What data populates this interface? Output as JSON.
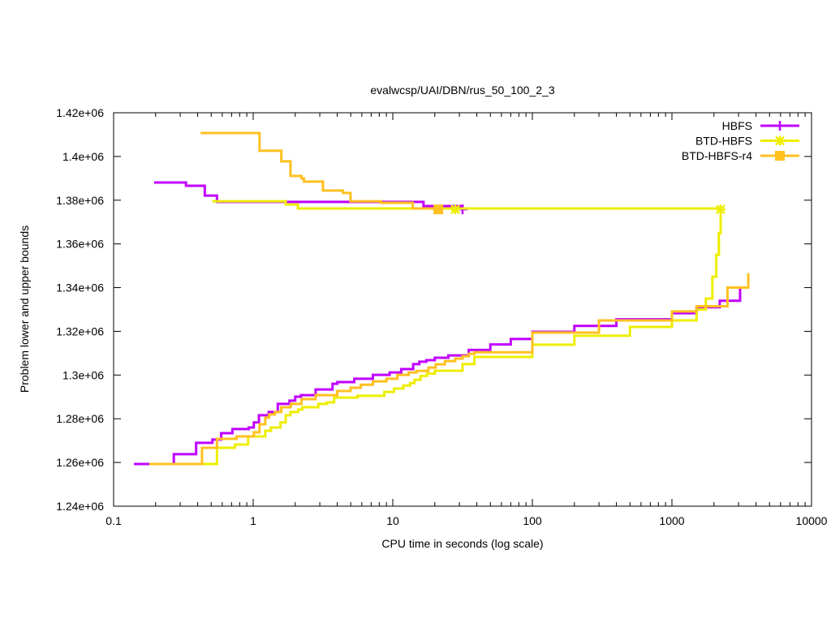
{
  "chart_data": {
    "type": "line",
    "title": "evalwcsp/UAI/DBN/rus_50_100_2_3",
    "xlabel": "CPU time in seconds (log scale)",
    "ylabel": "Problem lower and upper bounds",
    "xscale": "log",
    "xlim": [
      0.1,
      10000
    ],
    "ylim": [
      1240000,
      1420000
    ],
    "xticks": [
      0.1,
      1,
      10,
      100,
      1000,
      10000
    ],
    "xtick_labels": [
      "0.1",
      "1",
      "10",
      "100",
      "1000",
      "10000"
    ],
    "yticks": [
      1240000,
      1260000,
      1280000,
      1300000,
      1320000,
      1340000,
      1360000,
      1380000,
      1400000,
      1420000
    ],
    "ytick_labels": [
      "1.24e+06",
      "1.26e+06",
      "1.28e+06",
      "1.3e+06",
      "1.32e+06",
      "1.34e+06",
      "1.36e+06",
      "1.38e+06",
      "1.4e+06",
      "1.42e+06"
    ],
    "grid": false,
    "legend_position": "top-right",
    "series": [
      {
        "name": "HBFS",
        "color": "#c000ff",
        "marker": "plus",
        "upper": [
          [
            0.195,
            1388100
          ],
          [
            0.33,
            1386600
          ],
          [
            0.45,
            1382100
          ],
          [
            0.55,
            1379200
          ],
          [
            16.6,
            1377300
          ],
          [
            31.6,
            1375800
          ]
        ],
        "lower": [
          [
            0.14,
            1259300
          ],
          [
            0.19,
            1259300
          ],
          [
            0.27,
            1263800
          ],
          [
            0.39,
            1269000
          ],
          [
            0.51,
            1270500
          ],
          [
            0.59,
            1273400
          ],
          [
            0.71,
            1275300
          ],
          [
            0.93,
            1276000
          ],
          [
            1.01,
            1278300
          ],
          [
            1.1,
            1281600
          ],
          [
            1.29,
            1283100
          ],
          [
            1.5,
            1286800
          ],
          [
            1.82,
            1288300
          ],
          [
            2.0,
            1290100
          ],
          [
            2.2,
            1290800
          ],
          [
            2.8,
            1293400
          ],
          [
            3.7,
            1296000
          ],
          [
            4.0,
            1296800
          ],
          [
            5.3,
            1298300
          ],
          [
            7.2,
            1300100
          ],
          [
            9.5,
            1301200
          ],
          [
            11.5,
            1302700
          ],
          [
            14.0,
            1305000
          ],
          [
            15.5,
            1306100
          ],
          [
            17.4,
            1306800
          ],
          [
            20.0,
            1307900
          ],
          [
            25,
            1309000
          ],
          [
            35,
            1311500
          ],
          [
            50,
            1314000
          ],
          [
            70,
            1316500
          ],
          [
            100,
            1319800
          ],
          [
            200,
            1322500
          ],
          [
            400,
            1325500
          ],
          [
            1000,
            1328300
          ],
          [
            1500,
            1331000
          ],
          [
            2200,
            1334000
          ],
          [
            3077,
            1340200
          ]
        ],
        "markers_at": [
          [
            31.6,
            1375800
          ]
        ]
      },
      {
        "name": "BTD-HBFS",
        "color": "#eeee00",
        "marker": "star",
        "upper": [
          [
            0.51,
            1379500
          ],
          [
            1.71,
            1378000
          ],
          [
            2.09,
            1376200
          ],
          [
            2234,
            1375800
          ]
        ],
        "lower": [
          [
            0.43,
            1259300
          ],
          [
            0.55,
            1259300
          ],
          [
            0.55,
            1266700
          ],
          [
            0.74,
            1268200
          ],
          [
            0.92,
            1271900
          ],
          [
            1.22,
            1274500
          ],
          [
            1.34,
            1276000
          ],
          [
            1.57,
            1278300
          ],
          [
            1.71,
            1281600
          ],
          [
            1.85,
            1283100
          ],
          [
            2.1,
            1284200
          ],
          [
            2.25,
            1285300
          ],
          [
            2.93,
            1286800
          ],
          [
            3.38,
            1287500
          ],
          [
            3.8,
            1289700
          ],
          [
            5.6,
            1290500
          ],
          [
            8.7,
            1292300
          ],
          [
            10.2,
            1293800
          ],
          [
            11.9,
            1295200
          ],
          [
            13.3,
            1296300
          ],
          [
            14.3,
            1297800
          ],
          [
            15.8,
            1299600
          ],
          [
            17.6,
            1300700
          ],
          [
            20,
            1302000
          ],
          [
            31.6,
            1305000
          ],
          [
            38.4,
            1308300
          ],
          [
            100,
            1313900
          ],
          [
            200,
            1318000
          ],
          [
            500,
            1322000
          ],
          [
            1000,
            1325000
          ],
          [
            1500,
            1330000
          ],
          [
            1750,
            1335000
          ],
          [
            1950,
            1345000
          ],
          [
            2080,
            1355000
          ],
          [
            2170,
            1365000
          ],
          [
            2234,
            1375800
          ]
        ],
        "markers_at": [
          [
            28,
            1375800
          ],
          [
            2234,
            1375800
          ]
        ]
      },
      {
        "name": "BTD-HBFS-r4",
        "color": "#ffc020",
        "marker": "square",
        "upper": [
          [
            0.42,
            1410700
          ],
          [
            1.11,
            1402600
          ],
          [
            1.59,
            1397800
          ],
          [
            1.85,
            1391100
          ],
          [
            2.22,
            1390000
          ],
          [
            2.31,
            1388500
          ],
          [
            3.16,
            1384400
          ],
          [
            4.4,
            1383300
          ],
          [
            4.98,
            1379500
          ],
          [
            8.2,
            1378800
          ],
          [
            13.9,
            1376200
          ],
          [
            21.2,
            1375800
          ]
        ],
        "lower": [
          [
            0.18,
            1259300
          ],
          [
            0.43,
            1259300
          ],
          [
            0.43,
            1266700
          ],
          [
            0.55,
            1270800
          ],
          [
            0.76,
            1271900
          ],
          [
            1.01,
            1273800
          ],
          [
            1.11,
            1277500
          ],
          [
            1.22,
            1280500
          ],
          [
            1.3,
            1282000
          ],
          [
            1.43,
            1283100
          ],
          [
            1.59,
            1285300
          ],
          [
            1.86,
            1286800
          ],
          [
            2.22,
            1289000
          ],
          [
            2.8,
            1290800
          ],
          [
            4.0,
            1292700
          ],
          [
            4.98,
            1294200
          ],
          [
            5.9,
            1295600
          ],
          [
            7.2,
            1297100
          ],
          [
            9.0,
            1298300
          ],
          [
            10.8,
            1300100
          ],
          [
            13.0,
            1301200
          ],
          [
            14.8,
            1301900
          ],
          [
            18.0,
            1303400
          ],
          [
            20.3,
            1304900
          ],
          [
            23.6,
            1306400
          ],
          [
            28,
            1307500
          ],
          [
            31.6,
            1308600
          ],
          [
            35,
            1309700
          ],
          [
            38.4,
            1310400
          ],
          [
            100,
            1319400
          ],
          [
            300,
            1325000
          ],
          [
            1000,
            1329100
          ],
          [
            1500,
            1331500
          ],
          [
            2500,
            1340000
          ],
          [
            3524,
            1346500
          ]
        ],
        "markers_at": [
          [
            21.2,
            1375800
          ]
        ]
      }
    ]
  }
}
